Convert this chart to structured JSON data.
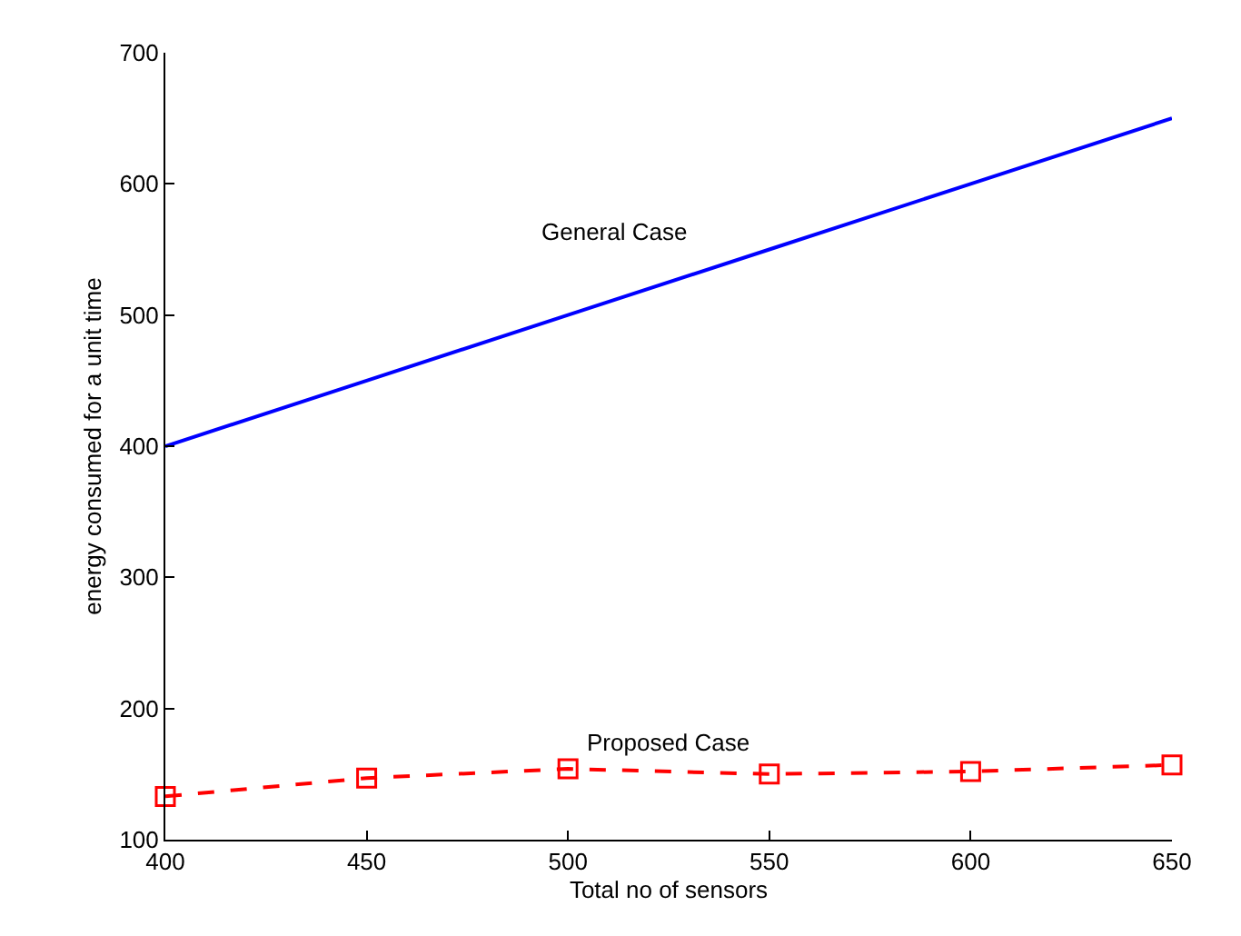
{
  "chart_data": {
    "type": "line",
    "xlabel": "Total no of sensors",
    "ylabel": "energy consumed for a unit time",
    "x": [
      400,
      450,
      500,
      550,
      600,
      650
    ],
    "series": [
      {
        "name": "General Case",
        "color": "#0000ff",
        "values": [
          400,
          450,
          500,
          550,
          600,
          650
        ],
        "marker": "none",
        "line_style": "solid"
      },
      {
        "name": "Proposed Case",
        "color": "#ff0000",
        "values": [
          133,
          147,
          154,
          150,
          152,
          157
        ],
        "marker": "square",
        "line_style": "dashed"
      }
    ],
    "xlim": [
      400,
      650
    ],
    "xticks": [
      400,
      450,
      500,
      550,
      600,
      650
    ],
    "ylim": [
      100,
      700
    ],
    "yticks": [
      100,
      200,
      300,
      400,
      500,
      600,
      700
    ],
    "legend": false
  }
}
